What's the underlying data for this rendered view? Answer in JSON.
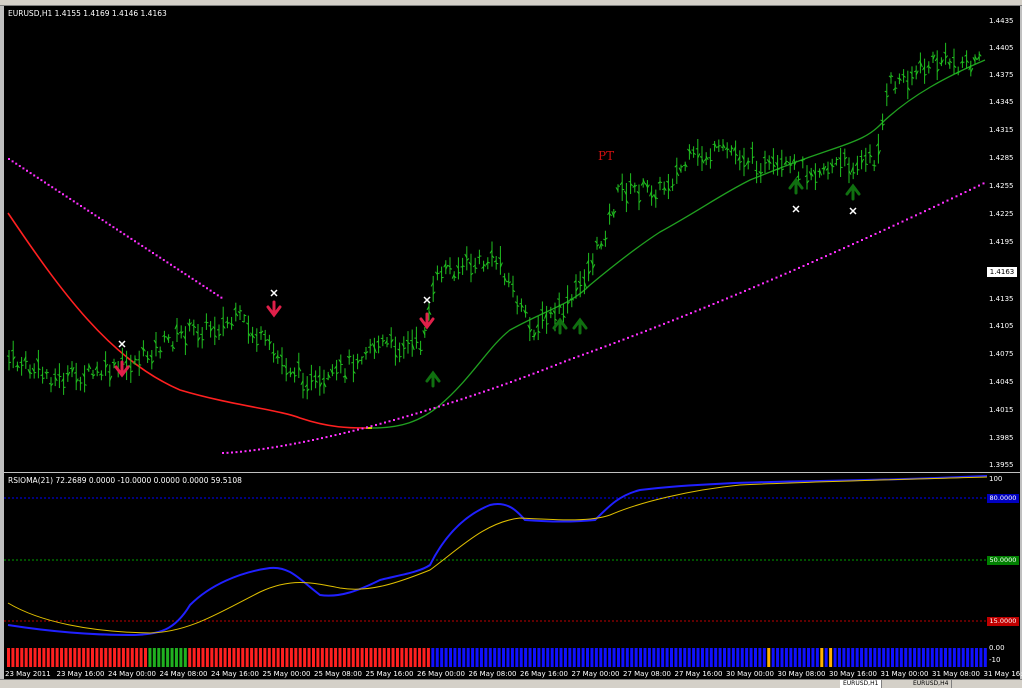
{
  "main_chart": {
    "header": "EURUSD,H1  1.4155 1.4169 1.4146 1.4163",
    "current_price": "1.4163",
    "marker_label": "PT",
    "y_ticks": [
      "1.4435",
      "1.4405",
      "1.4375",
      "1.4345",
      "1.4315",
      "1.4285",
      "1.4255",
      "1.4225",
      "1.4195",
      "1.4135",
      "1.4105",
      "1.4075",
      "1.4045",
      "1.4015",
      "1.3985",
      "1.3955"
    ]
  },
  "indicator": {
    "header": "RSIOMA(21) 72.2689 0.0000 -10.0000 0.0000 0.0000 59.5108",
    "y_labels": [
      "100",
      "80.0000",
      "50.0000",
      "15.0000",
      "0.00",
      "-10"
    ],
    "colors": {
      "rsioma": "#2020ff",
      "signal": "#e0c000",
      "level80": "#0000ff",
      "level50": "#00a000",
      "level15": "#c00000"
    }
  },
  "x_axis": {
    "labels": [
      "23 May 2011",
      "23 May 16:00",
      "24 May 00:00",
      "24 May 08:00",
      "24 May 16:00",
      "25 May 00:00",
      "25 May 08:00",
      "25 May 16:00",
      "26 May 00:00",
      "26 May 08:00",
      "26 May 16:00",
      "27 May 00:00",
      "27 May 08:00",
      "27 May 16:00",
      "30 May 00:00",
      "30 May 08:00",
      "30 May 16:00",
      "31 May 00:00",
      "31 May 08:00",
      "31 May 16:00"
    ]
  },
  "tabs": [
    "EURUSD,H1",
    "",
    "",
    "",
    "",
    "",
    "",
    "",
    "",
    "",
    "",
    "",
    "",
    "EURUSD,H1",
    "EURUSD,H4"
  ],
  "colors": {
    "ma_red": "#ff2020",
    "ma_green": "#20a020",
    "dots_magenta": "#ff30ff",
    "bars": "#20c020",
    "arrow_down": "#e0204a",
    "arrow_up": "#107010"
  }
}
